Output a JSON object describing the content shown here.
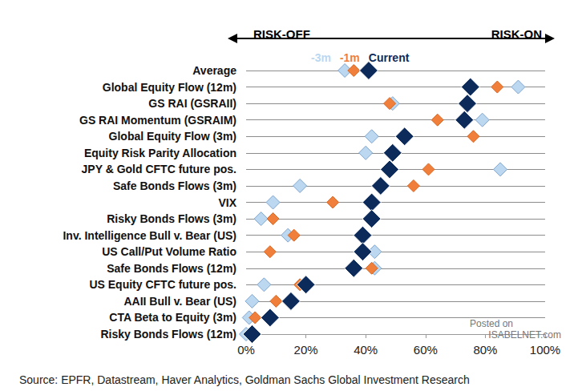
{
  "chart_data": {
    "type": "scatter",
    "marker": "diamond",
    "categories": [
      "Average",
      "Global Equity Flow (12m)",
      "GS RAI (GSRAII)",
      "GS RAI Momentum (GSRAIM)",
      "Global Equity Flow (3m)",
      "Equity Risk Parity Allocation",
      "JPY & Gold CFTC future pos.",
      "Safe Bonds Flows (3m)",
      "VIX",
      "Risky Bonds Flows (3m)",
      "Inv. Intelligence Bull v. Bear (US)",
      "US Call/Put Volume Ratio",
      "Safe Bonds Flows (12m)",
      "US Equity CFTC future pos.",
      "AAII Bull v. Bear (US)",
      "CTA Beta to Equity (3m)",
      "Risky Bonds Flows (12m)"
    ],
    "series": [
      {
        "name": "-3m",
        "color": "#bcd7f0",
        "values": [
          33,
          91,
          49,
          79,
          42,
          40,
          85,
          18,
          9,
          5,
          14,
          43,
          43,
          6,
          2,
          1,
          0
        ]
      },
      {
        "name": "-1m",
        "color": "#f07f3c",
        "values": [
          36,
          84,
          48,
          64,
          76,
          49,
          61,
          56,
          29,
          9,
          16,
          8,
          42,
          18,
          10,
          3,
          2
        ]
      },
      {
        "name": "Current",
        "color": "#0d2b5a",
        "values": [
          41,
          75,
          74,
          73,
          53,
          49,
          48,
          45,
          42,
          42,
          39,
          39,
          36,
          20,
          15,
          8,
          2
        ]
      }
    ],
    "xlim": [
      0,
      100
    ],
    "xticks": [
      {
        "value": 0,
        "label": "0%"
      },
      {
        "value": 20,
        "label": "20%"
      },
      {
        "value": 40,
        "label": "40%"
      },
      {
        "value": 60,
        "label": "60%"
      },
      {
        "value": 80,
        "label": "80%"
      },
      {
        "value": 100,
        "label": "100%"
      }
    ],
    "grid": true,
    "legend": "top",
    "annotations": [
      "RISK-OFF",
      "RISK-ON"
    ],
    "source": "Source: EPFR, Datastream, Haver Analytics, Goldman Sachs Global Investment Research",
    "watermark": [
      "Posted on",
      "ISABELNET.com"
    ]
  }
}
